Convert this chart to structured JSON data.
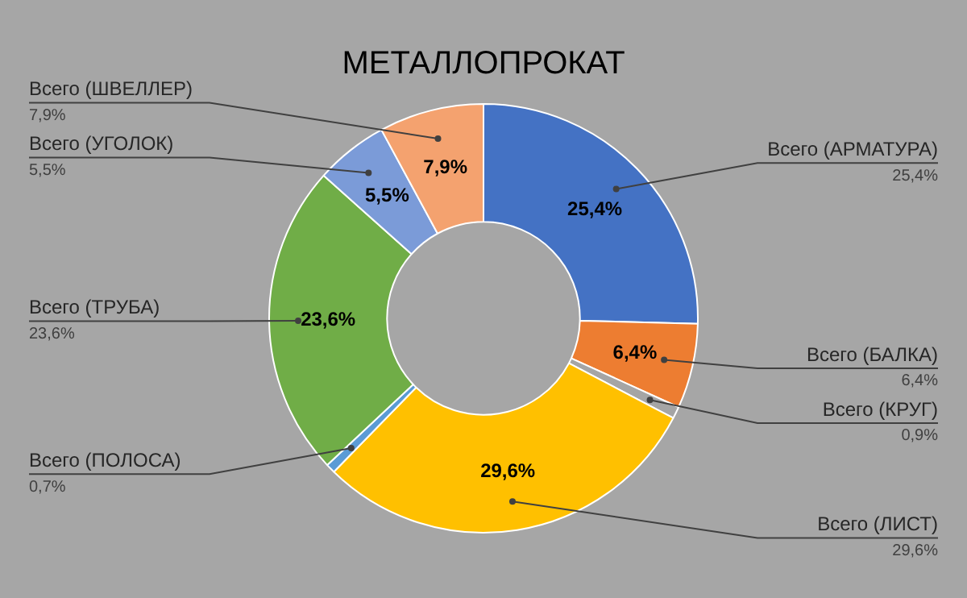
{
  "chart_data": {
    "type": "donut",
    "title": "МЕТАЛЛОПРОКАТ",
    "categories": [
      "Всего (АРМАТУРА)",
      "Всего (БАЛКА)",
      "Всего (КРУГ)",
      "Всего (ЛИСТ)",
      "Всего (ПОЛОСА)",
      "Всего (ТРУБА)",
      "Всего (УГОЛОК)",
      "Всего (ШВЕЛЛЕР)"
    ],
    "values": [
      25.4,
      6.4,
      0.9,
      29.6,
      0.7,
      23.6,
      5.5,
      7.9
    ],
    "value_labels": [
      "25,4%",
      "6,4%",
      "0,9%",
      "29,6%",
      "0,7%",
      "23,6%",
      "5,5%",
      "7,9%"
    ],
    "colors": [
      "#4472c4",
      "#ed7d31",
      "#a5a5a5",
      "#ffc000",
      "#5b9bd5",
      "#70ad47",
      "#7b9bd8",
      "#f4a26f"
    ],
    "legend": false
  }
}
